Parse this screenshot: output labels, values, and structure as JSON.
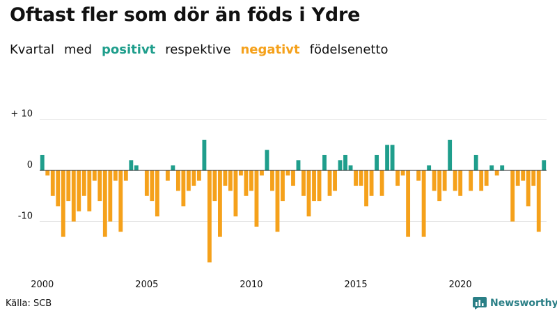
{
  "title": "Oftast fler som dör än föds i Ydre",
  "subtitle": {
    "part1": "Kvartal",
    "part2": "med",
    "positive_word": "positivt",
    "part3": "respektive",
    "negative_word": "negativt",
    "part4": "födelsenetto"
  },
  "colors": {
    "positive": "#1f9e8c",
    "negative": "#f5a11b",
    "zero_line": "#222222",
    "grid": "#e6e6e6",
    "brand": "#2a7f86"
  },
  "source": "Källa: SCB",
  "brand": {
    "name": "Newsworthy",
    "icon": "bar-chart-logo-icon"
  },
  "chart_data": {
    "type": "bar",
    "title": "",
    "xlabel": "",
    "ylabel": "",
    "ylim": [
      -19,
      10
    ],
    "yticks": [
      {
        "value": 10,
        "label": "+ 10"
      },
      {
        "value": 0,
        "label": "0"
      },
      {
        "value": -10,
        "label": "-10"
      }
    ],
    "xticks": [
      "2000",
      "2005",
      "2010",
      "2015",
      "2020"
    ],
    "grid": true,
    "series": [
      {
        "quarters_start": "2000 Q1",
        "values": [
          3,
          -1,
          -5,
          -7,
          -13,
          -6,
          -10,
          -8,
          -5,
          -8,
          -2,
          -6,
          -13,
          -10,
          -2,
          -12,
          -2,
          2,
          1,
          0,
          -5,
          -6,
          -9,
          0,
          -2,
          1,
          -4,
          -7,
          -4,
          -3,
          -2,
          6,
          -18,
          -6,
          -13,
          -3,
          -4,
          -9,
          -1,
          -5,
          -4,
          -11,
          -1,
          4,
          -4,
          -12,
          -6,
          -1,
          -3,
          2,
          -5,
          -9,
          -6,
          -6,
          3,
          -5,
          -4,
          2,
          3,
          1,
          -3,
          -3,
          -7,
          -5,
          3,
          -5,
          5,
          5,
          -3,
          -1,
          -13,
          0,
          -2,
          -13,
          1,
          -4,
          -6,
          -4,
          6,
          -4,
          -5,
          0,
          -4,
          3,
          -4,
          -3,
          1,
          -1,
          1,
          0,
          -10,
          -3,
          -2,
          -7,
          -3,
          -12,
          2
        ]
      }
    ]
  }
}
